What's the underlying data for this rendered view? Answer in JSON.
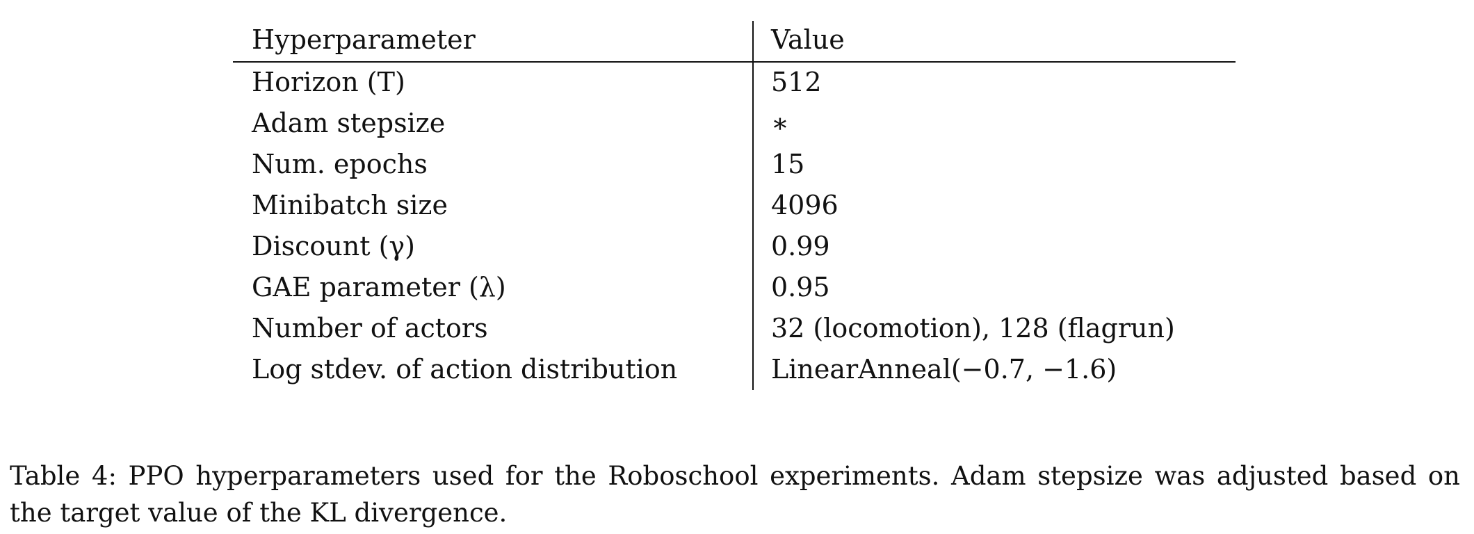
{
  "table": {
    "headers": [
      "Hyperparameter",
      "Value"
    ],
    "rows": [
      [
        "Horizon (T)",
        "512"
      ],
      [
        "Adam stepsize",
        "∗"
      ],
      [
        "Num. epochs",
        "15"
      ],
      [
        "Minibatch size",
        "4096"
      ],
      [
        "Discount (γ)",
        "0.99"
      ],
      [
        "GAE parameter (λ)",
        "0.95"
      ],
      [
        "Number of actors",
        "32 (locomotion), 128 (flagrun)"
      ],
      [
        "Log stdev. of action distribution",
        "LinearAnneal(−0.7, −1.6)"
      ]
    ]
  },
  "caption": "Table 4: PPO hyperparameters used for the Roboschool experiments. Adam stepsize was adjusted based on the target value of the KL divergence."
}
